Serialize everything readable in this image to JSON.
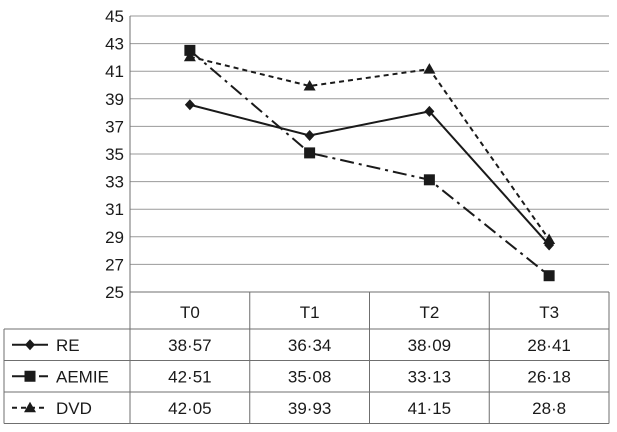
{
  "chart_data": {
    "type": "line",
    "title": "",
    "xlabel": "",
    "ylabel": "",
    "ylim": [
      25,
      45
    ],
    "yticks": [
      25,
      27,
      29,
      31,
      33,
      35,
      37,
      39,
      41,
      43,
      45
    ],
    "grid": "horizontal",
    "legend_placement": "table-left",
    "categories": [
      "T0",
      "T1",
      "T2",
      "T3"
    ],
    "series": [
      {
        "name": "RE",
        "values": [
          38.57,
          36.34,
          38.09,
          28.41
        ],
        "labels": [
          "38·57",
          "36·34",
          "38·09",
          "28·41"
        ],
        "marker": "diamond",
        "dash": "solid"
      },
      {
        "name": "AEMIE",
        "values": [
          42.51,
          35.08,
          33.13,
          26.18
        ],
        "labels": [
          "42·51",
          "35·08",
          "33·13",
          "26·18"
        ],
        "marker": "square",
        "dash": "dash-dot"
      },
      {
        "name": "DVD",
        "values": [
          42.05,
          39.93,
          41.15,
          28.8
        ],
        "labels": [
          "42·05",
          "39·93",
          "41·15",
          "28·8"
        ],
        "marker": "triangle",
        "dash": "dashed"
      }
    ],
    "colors": {
      "line": "#1a1a1a",
      "grid": "#9a9a9a"
    }
  }
}
